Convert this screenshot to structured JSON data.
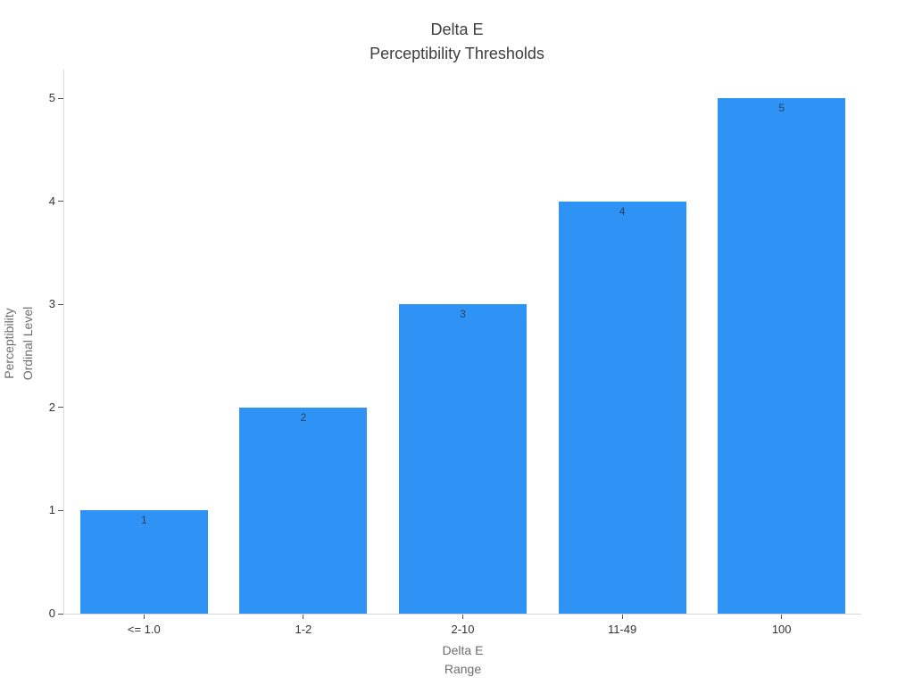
{
  "chart_data": {
    "type": "bar",
    "title": "Delta E\nPerceptibility Thresholds",
    "title_lines": [
      "Delta E",
      "Perceptibility Thresholds"
    ],
    "categories": [
      "<= 1.0",
      "1-2",
      "2-10",
      "11-49",
      "100"
    ],
    "values": [
      1,
      2,
      3,
      4,
      5
    ],
    "xlabel": "Delta E Range",
    "xlabel_lines": [
      "Delta E",
      "Range"
    ],
    "ylabel": "Perceptibility Ordinal Level",
    "ylabel_lines": [
      "Perceptibility",
      "Ordinal Level"
    ],
    "yticks": [
      0,
      1,
      2,
      3,
      4,
      5
    ],
    "ylim": [
      0,
      5
    ],
    "grid": false,
    "legend_position": "none",
    "colors": {
      "bar": "#2e93f5",
      "bar_label": "#2a3f5f",
      "title": "#3d3d3d",
      "tick_label": "#333333",
      "axis_title": "#6e6e6e",
      "axis_line": "#d9d9d9",
      "background": "#ffffff"
    }
  }
}
